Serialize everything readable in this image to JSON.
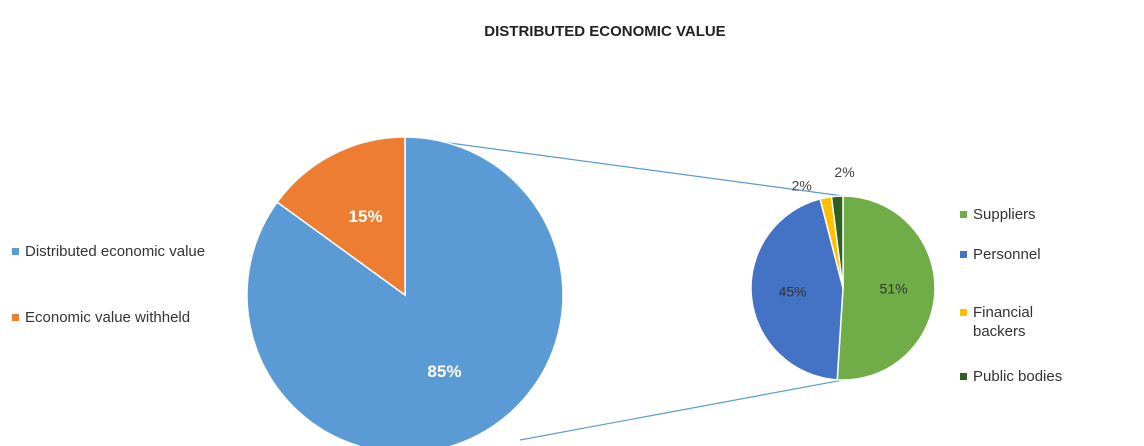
{
  "chart_data": [
    {
      "type": "pie",
      "title": "DISTRIBUTED ECONOMIC VALUE",
      "categories": [
        "Distributed economic value",
        "Economic value withheld"
      ],
      "values": [
        85,
        15
      ],
      "value_labels": [
        "85%",
        "15%"
      ],
      "colors": [
        "#5b9bd5",
        "#ed7d31"
      ],
      "legend": "left"
    },
    {
      "type": "pie",
      "categories": [
        "Suppliers",
        "Personnel",
        "Financial backers",
        "Public bodies"
      ],
      "values": [
        51,
        45,
        2,
        2
      ],
      "value_labels": [
        "51%",
        "45%",
        "2%",
        "2%"
      ],
      "colors": [
        "#70ad47",
        "#4472c4",
        "#ffc000",
        "#2f5f22"
      ],
      "legend": "right"
    }
  ]
}
